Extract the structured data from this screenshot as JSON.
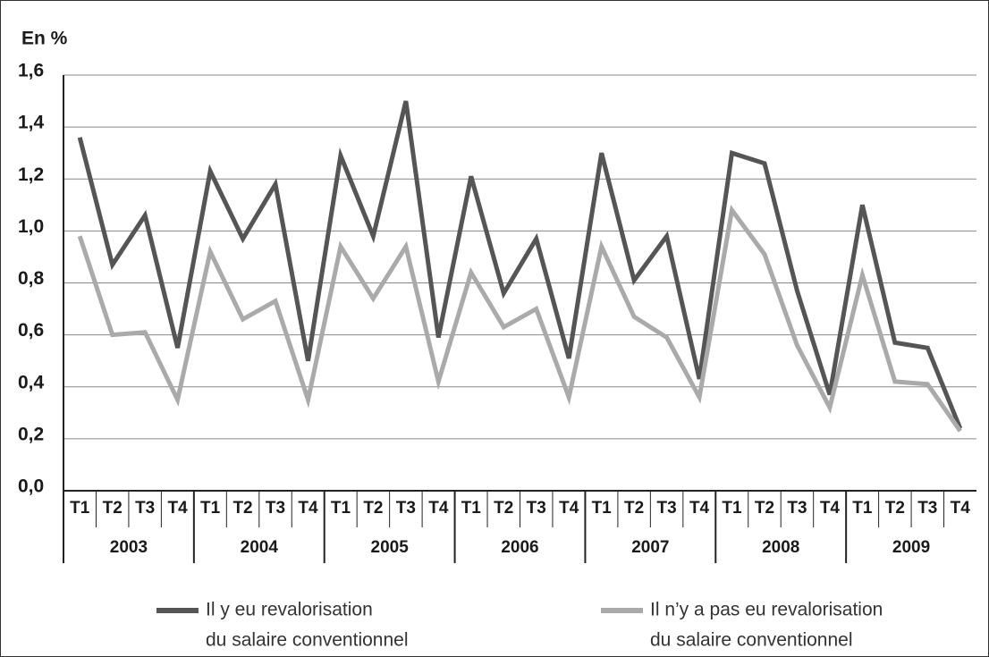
{
  "chart_data": {
    "type": "line",
    "y_label": "En %",
    "categories": [
      "T1",
      "T2",
      "T3",
      "T4",
      "T1",
      "T2",
      "T3",
      "T4",
      "T1",
      "T2",
      "T3",
      "T4",
      "T1",
      "T2",
      "T3",
      "T4",
      "T1",
      "T2",
      "T3",
      "T4",
      "T1",
      "T2",
      "T3",
      "T4",
      "T1",
      "T2",
      "T3",
      "T4"
    ],
    "category_groups": [
      "2003",
      "2004",
      "2005",
      "2006",
      "2007",
      "2008",
      "2009"
    ],
    "series": [
      {
        "name": [
          "Il y eu revalorisation",
          "du salaire conventionnel"
        ],
        "color": "#555555",
        "values": [
          1.36,
          0.87,
          1.06,
          0.55,
          1.23,
          0.97,
          1.18,
          0.5,
          1.29,
          0.98,
          1.5,
          0.59,
          1.21,
          0.76,
          0.97,
          0.51,
          1.3,
          0.81,
          0.98,
          0.43,
          1.3,
          1.26,
          0.77,
          0.37,
          1.1,
          0.57,
          0.55,
          0.24
        ]
      },
      {
        "name": [
          "Il n’y a pas eu revalorisation",
          "du salaire conventionnel"
        ],
        "color": "#aaaaaa",
        "values": [
          0.98,
          0.6,
          0.61,
          0.35,
          0.92,
          0.66,
          0.73,
          0.35,
          0.94,
          0.74,
          0.94,
          0.42,
          0.84,
          0.63,
          0.7,
          0.36,
          0.94,
          0.67,
          0.59,
          0.36,
          1.08,
          0.91,
          0.56,
          0.32,
          0.83,
          0.42,
          0.41,
          0.23
        ]
      }
    ],
    "ylim": [
      0,
      1.6
    ],
    "yticks": [
      {
        "value": 0,
        "label": "0,0"
      },
      {
        "value": 0.2,
        "label": "0,2"
      },
      {
        "value": 0.4,
        "label": "0,4"
      },
      {
        "value": 0.6,
        "label": "0,6"
      },
      {
        "value": 0.8,
        "label": "0,8"
      },
      {
        "value": 1.0,
        "label": "1,0"
      },
      {
        "value": 1.2,
        "label": "1,2"
      },
      {
        "value": 1.4,
        "label": "1,4"
      },
      {
        "value": 1.6,
        "label": "1,6"
      }
    ],
    "grid": true
  }
}
